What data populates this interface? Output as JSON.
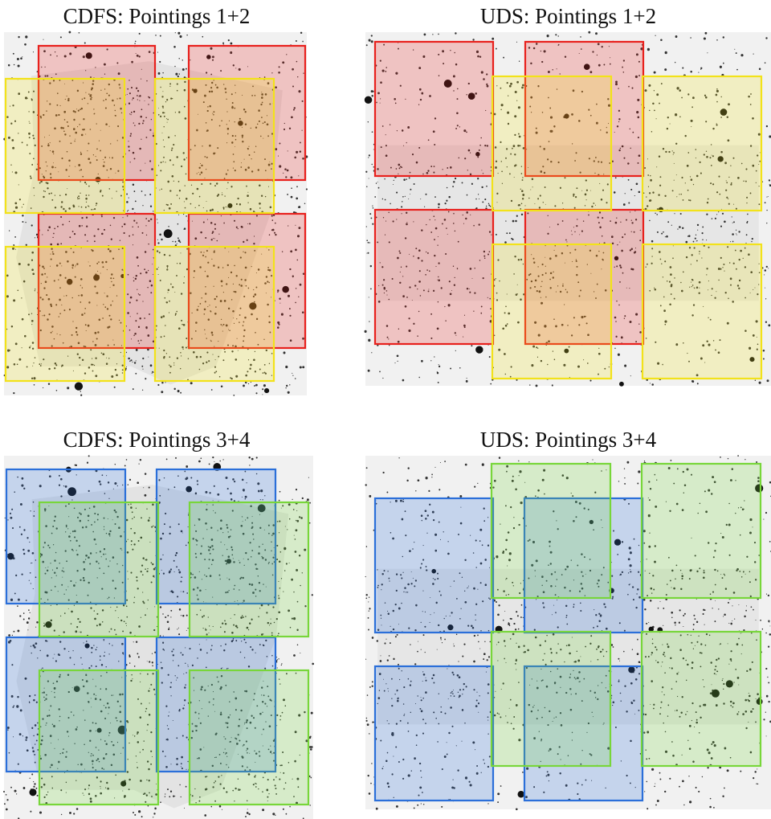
{
  "colors": {
    "background": "#ffffff",
    "sky": "#f1f1f1",
    "source": "#111111",
    "deep_region_tint_cdfs": "#e3e3e3",
    "deep_region_tint_uds": "#e6e6e6",
    "pointing_1": "#e8211d",
    "pointing_2": "#f2e21a",
    "pointing_3": "#2b6fd9",
    "pointing_4": "#78d63a"
  },
  "panels": [
    {
      "id": "cdfs-1-2",
      "title": "CDFS: Pointings 1+2",
      "field": "CDFS",
      "pointing_pair": [
        "pointing_1",
        "pointing_2"
      ]
    },
    {
      "id": "uds-1-2",
      "title": "UDS: Pointings 1+2",
      "field": "UDS",
      "pointing_pair": [
        "pointing_1",
        "pointing_2"
      ]
    },
    {
      "id": "cdfs-3-4",
      "title": "CDFS: Pointings 3+4",
      "field": "CDFS",
      "pointing_pair": [
        "pointing_3",
        "pointing_4"
      ]
    },
    {
      "id": "uds-3-4",
      "title": "UDS: Pointings 3+4",
      "field": "UDS",
      "pointing_pair": [
        "pointing_3",
        "pointing_4"
      ]
    }
  ]
}
